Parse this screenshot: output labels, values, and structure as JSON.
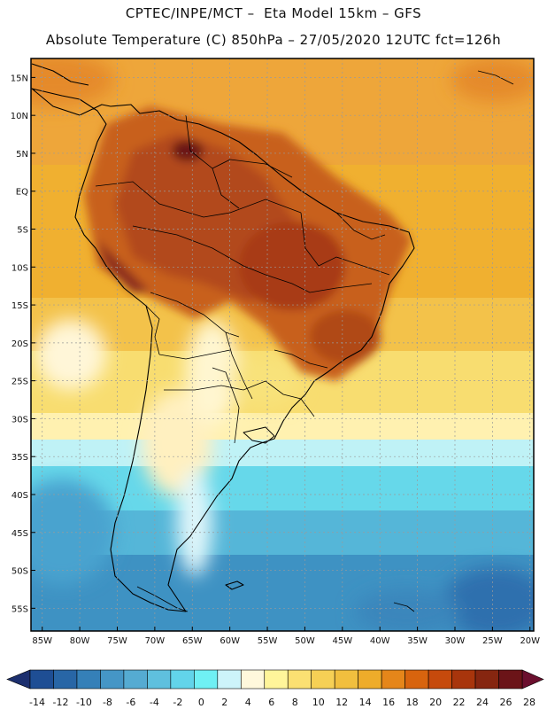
{
  "header": {
    "line1": "CPTEC/INPE/MCT –  Eta Model 15km – GFS",
    "line2": "Absolute Temperature (C) 850hPa – 27/05/2020 12UTC fct=126h"
  },
  "map": {
    "lat_labels": [
      "15N",
      "10N",
      "5N",
      "EQ",
      "5S",
      "10S",
      "15S",
      "20S",
      "25S",
      "30S",
      "35S",
      "40S",
      "45S",
      "50S",
      "55S"
    ],
    "lon_labels": [
      "85W",
      "80W",
      "75W",
      "70W",
      "65W",
      "60W",
      "55W",
      "50W",
      "45W",
      "40W",
      "35W",
      "30W",
      "25W",
      "20W"
    ],
    "lat_range": [
      17.5,
      -58
    ],
    "lon_range": [
      -86.5,
      -19.5
    ]
  },
  "legend": {
    "ticks": [
      "-14",
      "-12",
      "-10",
      "-8",
      "-6",
      "-4",
      "-2",
      "0",
      "2",
      "4",
      "6",
      "8",
      "10",
      "12",
      "14",
      "16",
      "18",
      "20",
      "22",
      "24",
      "26",
      "28"
    ],
    "colors": [
      "#1e4e94",
      "#2866a6",
      "#3580b8",
      "#4596c6",
      "#55abd2",
      "#5fc0de",
      "#62d4ea",
      "#6ff0f4",
      "#cdf4fa",
      "#fff8dc",
      "#fff59a",
      "#fbe072",
      "#f6d055",
      "#f1bf3e",
      "#eeac2a",
      "#e5861a",
      "#d8640e",
      "#c64a0c",
      "#a8350c",
      "#862610",
      "#6b1418"
    ]
  },
  "colors": {
    "grid": "#9a9a9a",
    "border": "#000000"
  }
}
